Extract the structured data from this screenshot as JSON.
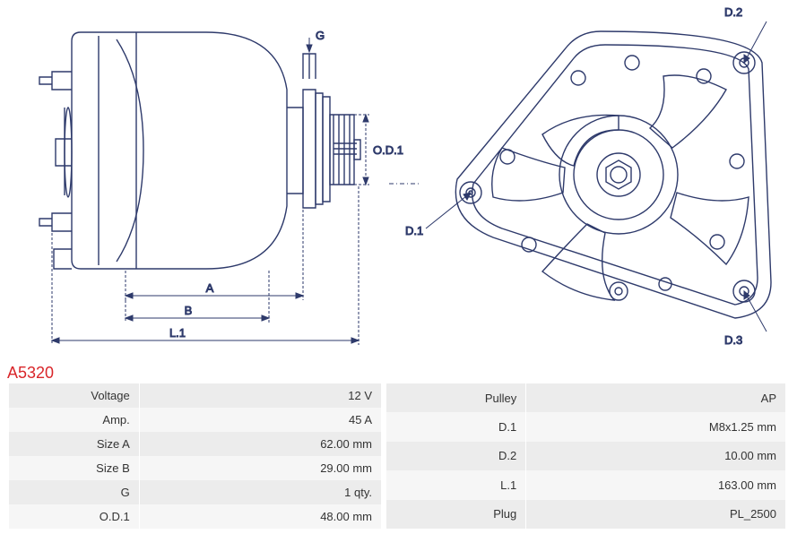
{
  "part_number": "A5320",
  "diagram": {
    "labels": {
      "G": "G",
      "OD1": "O.D.1",
      "A": "A",
      "B": "B",
      "L1": "L.1",
      "D1": "D.1",
      "D2": "D.2",
      "D3": "D.3"
    },
    "stroke_color": "#2e3a6b",
    "dimension_color": "#2e3a6b",
    "label_fontsize": 13,
    "background": "#ffffff"
  },
  "specs_left": [
    {
      "label": "Voltage",
      "value": "12 V"
    },
    {
      "label": "Amp.",
      "value": "45 A"
    },
    {
      "label": "Size A",
      "value": "62.00 mm"
    },
    {
      "label": "Size B",
      "value": "29.00 mm"
    },
    {
      "label": "G",
      "value": "1 qty."
    },
    {
      "label": "O.D.1",
      "value": "48.00 mm"
    }
  ],
  "specs_right": [
    {
      "label": "Pulley",
      "value": "AP"
    },
    {
      "label": "D.1",
      "value": "M8x1.25 mm"
    },
    {
      "label": "D.2",
      "value": "10.00 mm"
    },
    {
      "label": "L.1",
      "value": "163.00 mm"
    },
    {
      "label": "Plug",
      "value": "PL_2500"
    }
  ],
  "table_style": {
    "row_bg_odd": "#ececec",
    "row_bg_even": "#f6f6f6",
    "text_color": "#333333",
    "fontsize": 13
  }
}
